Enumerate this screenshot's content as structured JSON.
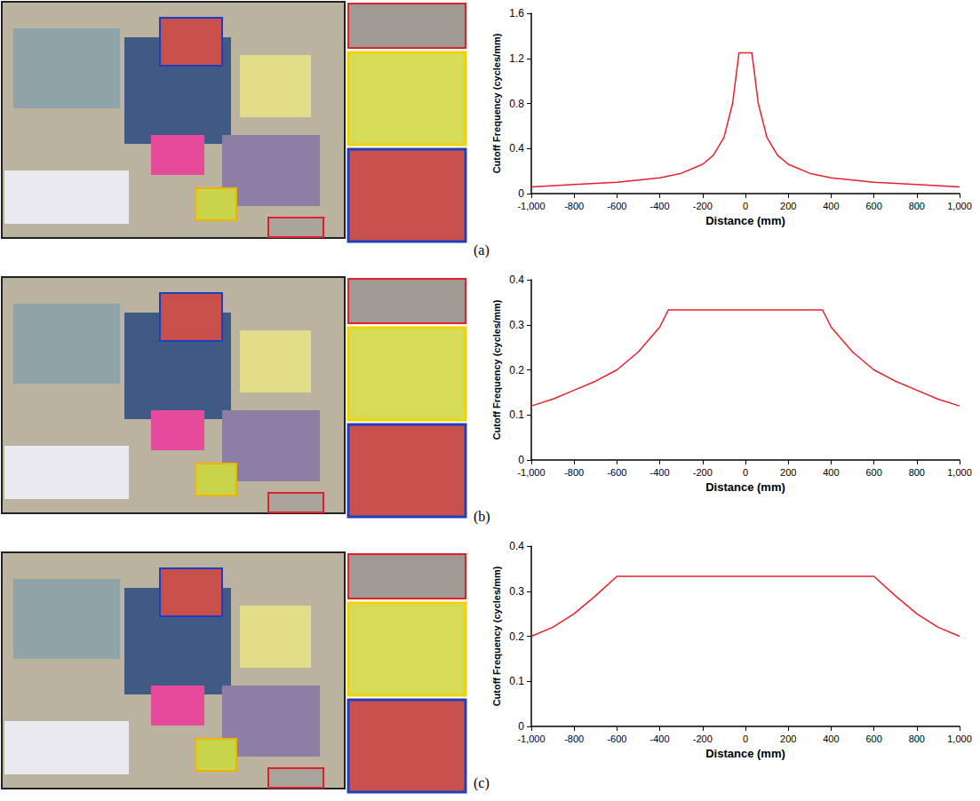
{
  "chart_data": [
    {
      "type": "line",
      "title": "(a)",
      "x_label": "Distance (mm)",
      "y_label": "Cutoff Frequency (cycles/mm)",
      "x": [
        -1000,
        -800,
        -600,
        -400,
        -300,
        -200,
        -150,
        -100,
        -60,
        -30,
        0,
        30,
        60,
        100,
        150,
        200,
        300,
        400,
        600,
        800,
        1000
      ],
      "values": [
        0.06,
        0.08,
        0.1,
        0.14,
        0.18,
        0.26,
        0.34,
        0.5,
        0.8,
        1.25,
        1.25,
        1.25,
        0.8,
        0.5,
        0.34,
        0.26,
        0.18,
        0.14,
        0.1,
        0.08,
        0.06
      ],
      "color": "#e8202a",
      "xlim": [
        -1000,
        1000
      ],
      "xticks": [
        -1000,
        -800,
        -600,
        -400,
        -200,
        0,
        200,
        400,
        600,
        800,
        1000
      ],
      "ylim": [
        0,
        1.6
      ],
      "yticks": [
        0,
        0.4,
        0.8,
        1.2,
        1.6
      ],
      "grid": false
    },
    {
      "type": "line",
      "title": "(b)",
      "x_label": "Distance (mm)",
      "y_label": "Cutoff Frequency (cycles/mm)",
      "x": [
        -1000,
        -900,
        -800,
        -700,
        -600,
        -500,
        -400,
        -360,
        360,
        400,
        500,
        600,
        700,
        800,
        900,
        1000
      ],
      "values": [
        0.12,
        0.135,
        0.155,
        0.175,
        0.2,
        0.24,
        0.295,
        0.333,
        0.333,
        0.295,
        0.24,
        0.2,
        0.175,
        0.155,
        0.135,
        0.12
      ],
      "color": "#e8202a",
      "xlim": [
        -1000,
        1000
      ],
      "xticks": [
        -1000,
        -800,
        -600,
        -400,
        -200,
        0,
        200,
        400,
        600,
        800,
        1000
      ],
      "ylim": [
        0,
        0.4
      ],
      "yticks": [
        0,
        0.1,
        0.2,
        0.3,
        0.4
      ],
      "grid": false
    },
    {
      "type": "line",
      "title": "(c)",
      "x_label": "Distance (mm)",
      "y_label": "Cutoff Frequency (cycles/mm)",
      "x": [
        -1000,
        -900,
        -800,
        -700,
        -600,
        600,
        700,
        800,
        900,
        1000
      ],
      "values": [
        0.2,
        0.22,
        0.25,
        0.29,
        0.333,
        0.333,
        0.29,
        0.25,
        0.22,
        0.2
      ],
      "color": "#e8202a",
      "xlim": [
        -1000,
        1000
      ],
      "xticks": [
        -1000,
        -800,
        -600,
        -400,
        -200,
        0,
        200,
        400,
        600,
        800,
        1000
      ],
      "ylim": [
        0,
        0.4
      ],
      "yticks": [
        0,
        0.1,
        0.2,
        0.3,
        0.4
      ],
      "grid": false
    }
  ]
}
